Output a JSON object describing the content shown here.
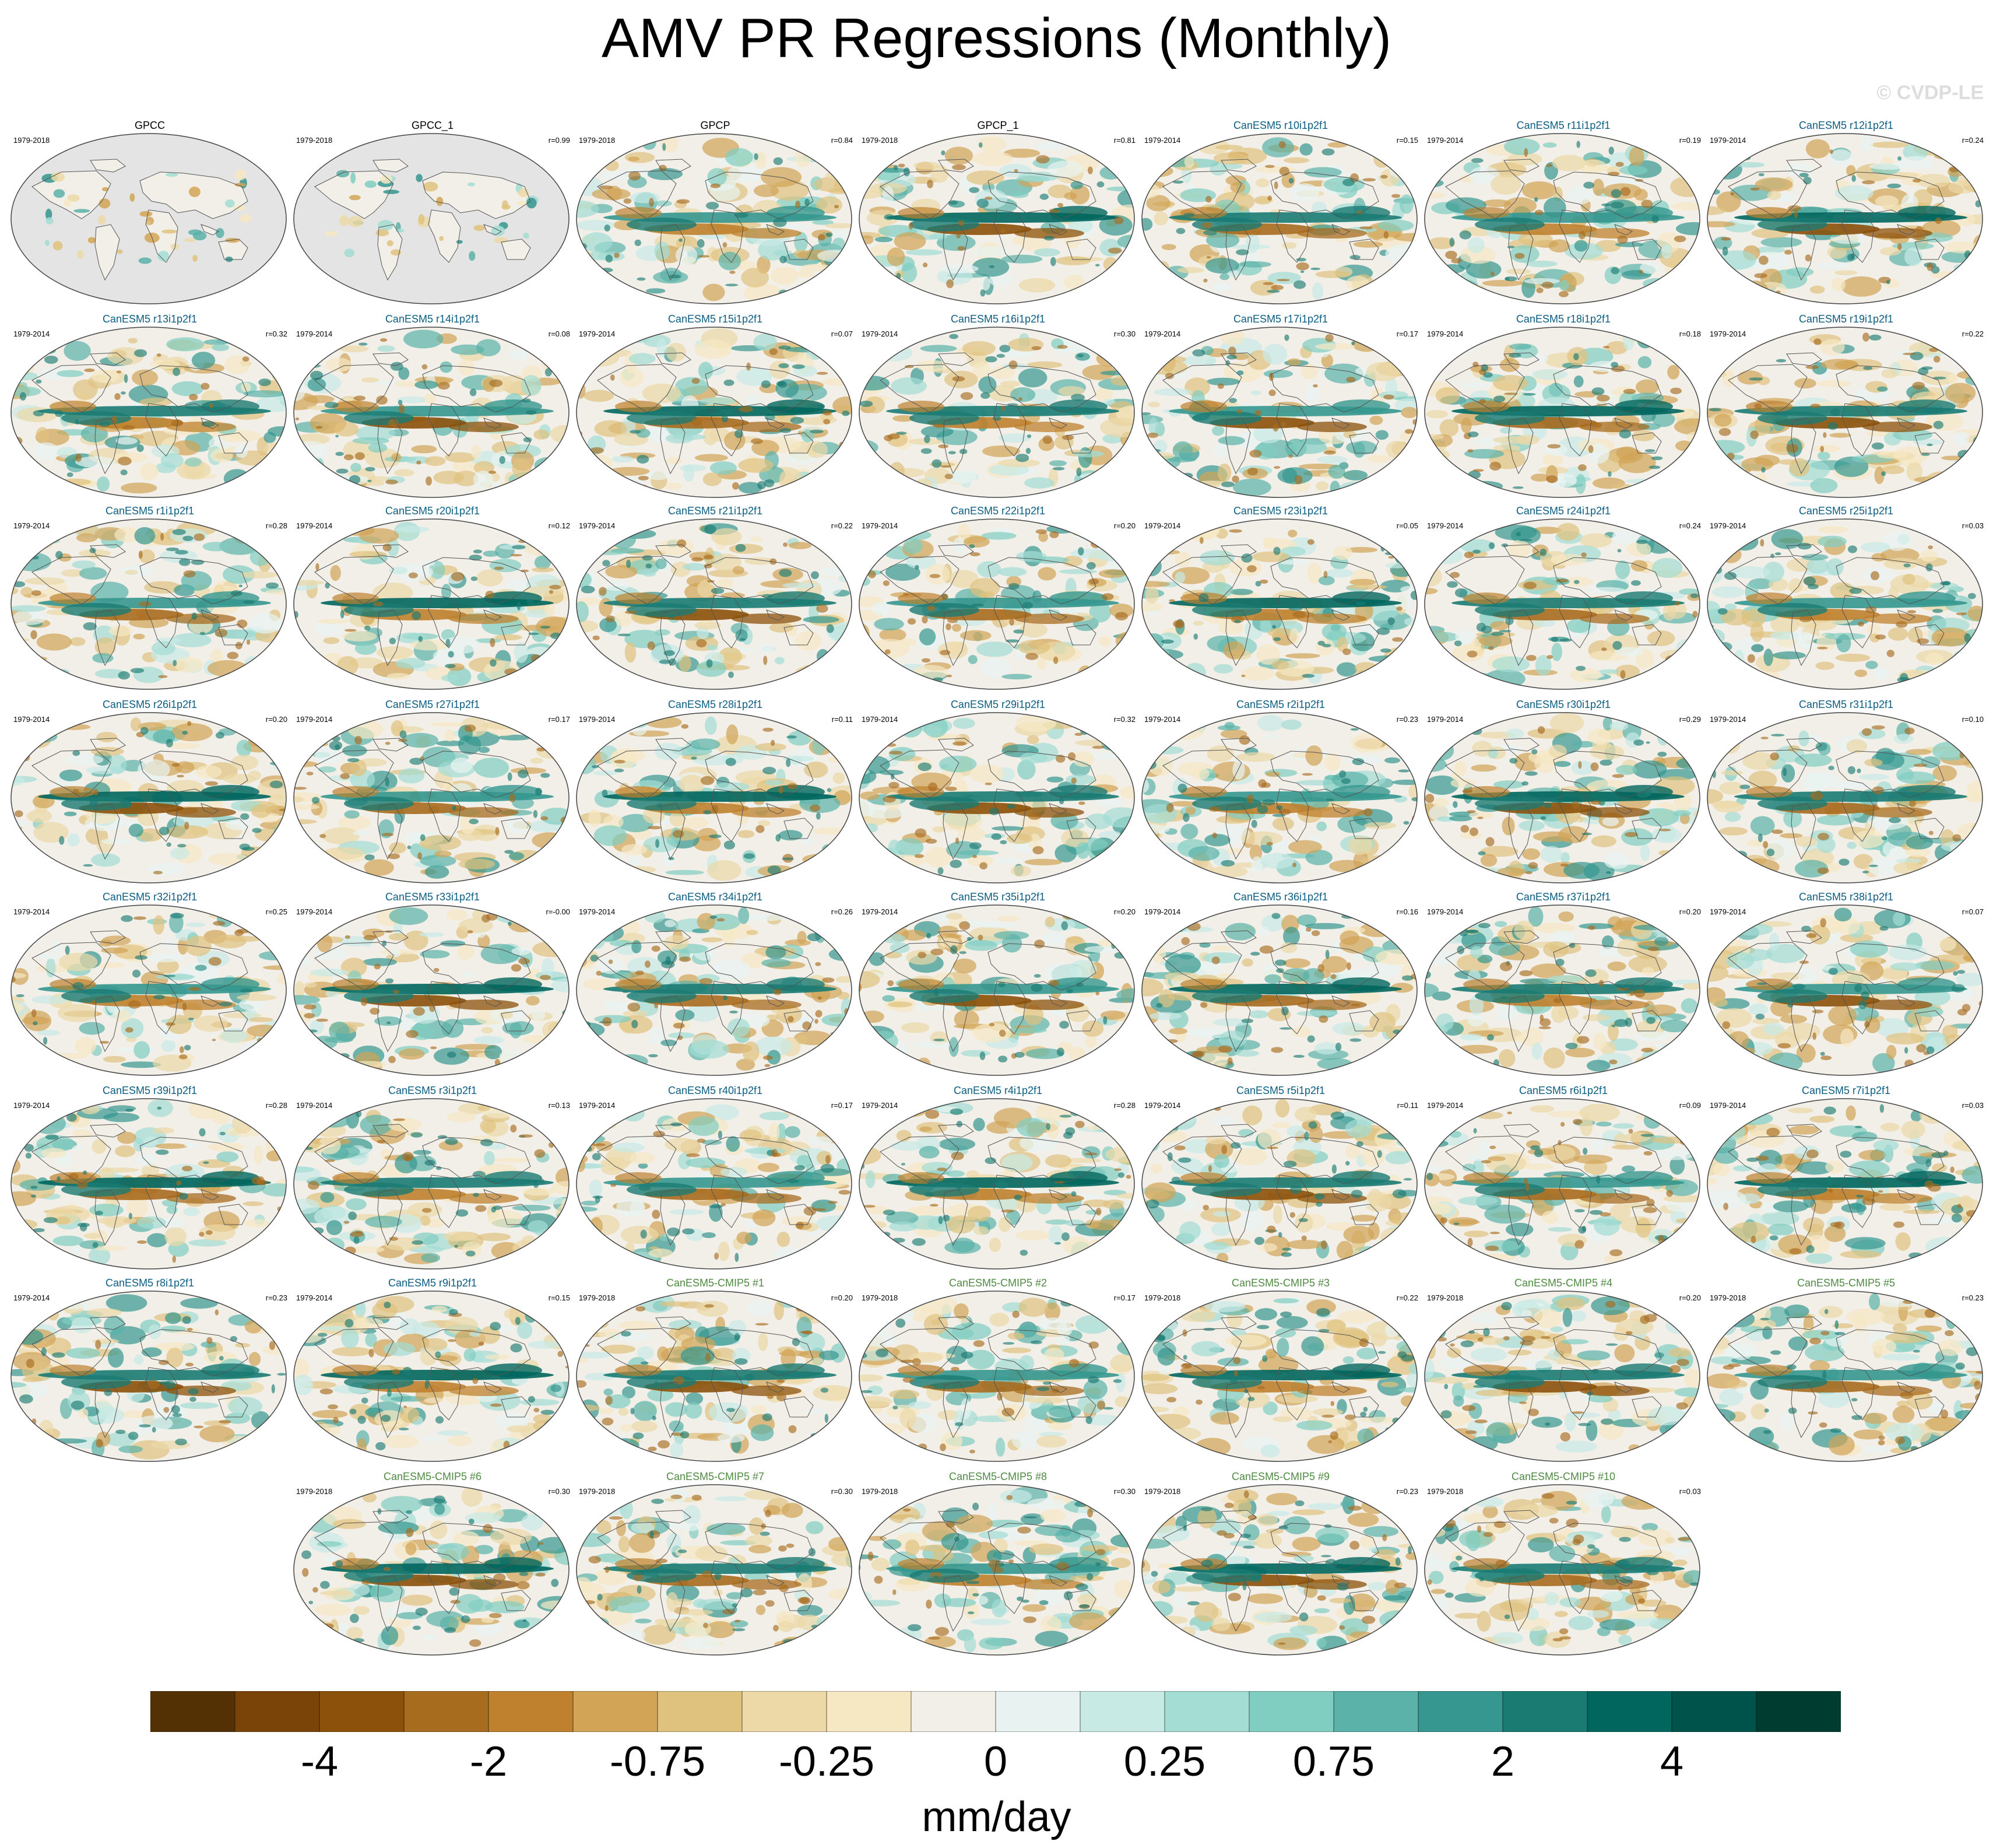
{
  "title": "AMV PR Regressions (Monthly)",
  "watermark": "© CVDP-LE",
  "colors": {
    "model_title": "#0b5d82",
    "cmip_title": "#4f8a42",
    "obs_title": "#000000",
    "land_mask": "#e4e4e4",
    "palette": [
      "#543005",
      "#7a4409",
      "#8c510a",
      "#a86c1f",
      "#bf812d",
      "#d2a455",
      "#dfc27d",
      "#ecd9a7",
      "#f6e8c3",
      "#f2efe9",
      "#e8f3f1",
      "#c7eae5",
      "#a3ddd4",
      "#80cdc1",
      "#5ab2a8",
      "#35978f",
      "#1a7b73",
      "#01665e",
      "#00534a",
      "#003c30"
    ]
  },
  "panels": [
    {
      "title": "GPCC",
      "kind": "obs",
      "years": "1979-2018",
      "r": ""
    },
    {
      "title": "GPCC_1",
      "kind": "obs",
      "years": "1979-2018",
      "r": "r=0.99"
    },
    {
      "title": "GPCP",
      "kind": "obs",
      "years": "1979-2018",
      "r": "r=0.84"
    },
    {
      "title": "GPCP_1",
      "kind": "obs",
      "years": "1979-2018",
      "r": "r=0.81"
    },
    {
      "title": "CanESM5 r10i1p2f1",
      "kind": "model",
      "years": "1979-2014",
      "r": "r=0.15"
    },
    {
      "title": "CanESM5 r11i1p2f1",
      "kind": "model",
      "years": "1979-2014",
      "r": "r=0.19"
    },
    {
      "title": "CanESM5 r12i1p2f1",
      "kind": "model",
      "years": "1979-2014",
      "r": "r=0.24"
    },
    {
      "title": "CanESM5 r13i1p2f1",
      "kind": "model",
      "years": "1979-2014",
      "r": "r=0.32"
    },
    {
      "title": "CanESM5 r14i1p2f1",
      "kind": "model",
      "years": "1979-2014",
      "r": "r=0.08"
    },
    {
      "title": "CanESM5 r15i1p2f1",
      "kind": "model",
      "years": "1979-2014",
      "r": "r=0.07"
    },
    {
      "title": "CanESM5 r16i1p2f1",
      "kind": "model",
      "years": "1979-2014",
      "r": "r=0.30"
    },
    {
      "title": "CanESM5 r17i1p2f1",
      "kind": "model",
      "years": "1979-2014",
      "r": "r=0.17"
    },
    {
      "title": "CanESM5 r18i1p2f1",
      "kind": "model",
      "years": "1979-2014",
      "r": "r=0.18"
    },
    {
      "title": "CanESM5 r19i1p2f1",
      "kind": "model",
      "years": "1979-2014",
      "r": "r=0.22"
    },
    {
      "title": "CanESM5 r1i1p2f1",
      "kind": "model",
      "years": "1979-2014",
      "r": "r=0.28"
    },
    {
      "title": "CanESM5 r20i1p2f1",
      "kind": "model",
      "years": "1979-2014",
      "r": "r=0.12"
    },
    {
      "title": "CanESM5 r21i1p2f1",
      "kind": "model",
      "years": "1979-2014",
      "r": "r=0.22"
    },
    {
      "title": "CanESM5 r22i1p2f1",
      "kind": "model",
      "years": "1979-2014",
      "r": "r=0.20"
    },
    {
      "title": "CanESM5 r23i1p2f1",
      "kind": "model",
      "years": "1979-2014",
      "r": "r=0.05"
    },
    {
      "title": "CanESM5 r24i1p2f1",
      "kind": "model",
      "years": "1979-2014",
      "r": "r=0.24"
    },
    {
      "title": "CanESM5 r25i1p2f1",
      "kind": "model",
      "years": "1979-2014",
      "r": "r=0.03"
    },
    {
      "title": "CanESM5 r26i1p2f1",
      "kind": "model",
      "years": "1979-2014",
      "r": "r=0.20"
    },
    {
      "title": "CanESM5 r27i1p2f1",
      "kind": "model",
      "years": "1979-2014",
      "r": "r=0.17"
    },
    {
      "title": "CanESM5 r28i1p2f1",
      "kind": "model",
      "years": "1979-2014",
      "r": "r=0.11"
    },
    {
      "title": "CanESM5 r29i1p2f1",
      "kind": "model",
      "years": "1979-2014",
      "r": "r=0.32"
    },
    {
      "title": "CanESM5 r2i1p2f1",
      "kind": "model",
      "years": "1979-2014",
      "r": "r=0.23"
    },
    {
      "title": "CanESM5 r30i1p2f1",
      "kind": "model",
      "years": "1979-2014",
      "r": "r=0.29"
    },
    {
      "title": "CanESM5 r31i1p2f1",
      "kind": "model",
      "years": "1979-2014",
      "r": "r=0.10"
    },
    {
      "title": "CanESM5 r32i1p2f1",
      "kind": "model",
      "years": "1979-2014",
      "r": "r=0.25"
    },
    {
      "title": "CanESM5 r33i1p2f1",
      "kind": "model",
      "years": "1979-2014",
      "r": "r=-0.00"
    },
    {
      "title": "CanESM5 r34i1p2f1",
      "kind": "model",
      "years": "1979-2014",
      "r": "r=0.26"
    },
    {
      "title": "CanESM5 r35i1p2f1",
      "kind": "model",
      "years": "1979-2014",
      "r": "r=0.20"
    },
    {
      "title": "CanESM5 r36i1p2f1",
      "kind": "model",
      "years": "1979-2014",
      "r": "r=0.16"
    },
    {
      "title": "CanESM5 r37i1p2f1",
      "kind": "model",
      "years": "1979-2014",
      "r": "r=0.20"
    },
    {
      "title": "CanESM5 r38i1p2f1",
      "kind": "model",
      "years": "1979-2014",
      "r": "r=0.07"
    },
    {
      "title": "CanESM5 r39i1p2f1",
      "kind": "model",
      "years": "1979-2014",
      "r": "r=0.28"
    },
    {
      "title": "CanESM5 r3i1p2f1",
      "kind": "model",
      "years": "1979-2014",
      "r": "r=0.13"
    },
    {
      "title": "CanESM5 r40i1p2f1",
      "kind": "model",
      "years": "1979-2014",
      "r": "r=0.17"
    },
    {
      "title": "CanESM5 r4i1p2f1",
      "kind": "model",
      "years": "1979-2014",
      "r": "r=0.28"
    },
    {
      "title": "CanESM5 r5i1p2f1",
      "kind": "model",
      "years": "1979-2014",
      "r": "r=0.11"
    },
    {
      "title": "CanESM5 r6i1p2f1",
      "kind": "model",
      "years": "1979-2014",
      "r": "r=0.09"
    },
    {
      "title": "CanESM5 r7i1p2f1",
      "kind": "model",
      "years": "1979-2014",
      "r": "r=0.03"
    },
    {
      "title": "CanESM5 r8i1p2f1",
      "kind": "model",
      "years": "1979-2014",
      "r": "r=0.23"
    },
    {
      "title": "CanESM5 r9i1p2f1",
      "kind": "model",
      "years": "1979-2014",
      "r": "r=0.15"
    },
    {
      "title": "CanESM5-CMIP5 #1",
      "kind": "cmip",
      "years": "1979-2018",
      "r": "r=0.20"
    },
    {
      "title": "CanESM5-CMIP5 #2",
      "kind": "cmip",
      "years": "1979-2018",
      "r": "r=0.17"
    },
    {
      "title": "CanESM5-CMIP5 #3",
      "kind": "cmip",
      "years": "1979-2018",
      "r": "r=0.22"
    },
    {
      "title": "CanESM5-CMIP5 #4",
      "kind": "cmip",
      "years": "1979-2018",
      "r": "r=0.20"
    },
    {
      "title": "CanESM5-CMIP5 #5",
      "kind": "cmip",
      "years": "1979-2018",
      "r": "r=0.23"
    },
    {
      "title": "CanESM5-CMIP5 #6",
      "kind": "cmip",
      "years": "1979-2018",
      "r": "r=0.30"
    },
    {
      "title": "CanESM5-CMIP5 #7",
      "kind": "cmip",
      "years": "1979-2018",
      "r": "r=0.30"
    },
    {
      "title": "CanESM5-CMIP5 #8",
      "kind": "cmip",
      "years": "1979-2018",
      "r": "r=0.30"
    },
    {
      "title": "CanESM5-CMIP5 #9",
      "kind": "cmip",
      "years": "1979-2018",
      "r": "r=0.23"
    },
    {
      "title": "CanESM5-CMIP5 #10",
      "kind": "cmip",
      "years": "1979-2018",
      "r": "r=0.03"
    }
  ],
  "colorbar": {
    "tick_labels": [
      "-4",
      "-2",
      "-0.75",
      "-0.25",
      "0",
      "0.25",
      "0.75",
      "2",
      "4"
    ],
    "tick_boundary_index": [
      2,
      4,
      6,
      8,
      10,
      12,
      14,
      16,
      18
    ],
    "units": "mm/day"
  }
}
